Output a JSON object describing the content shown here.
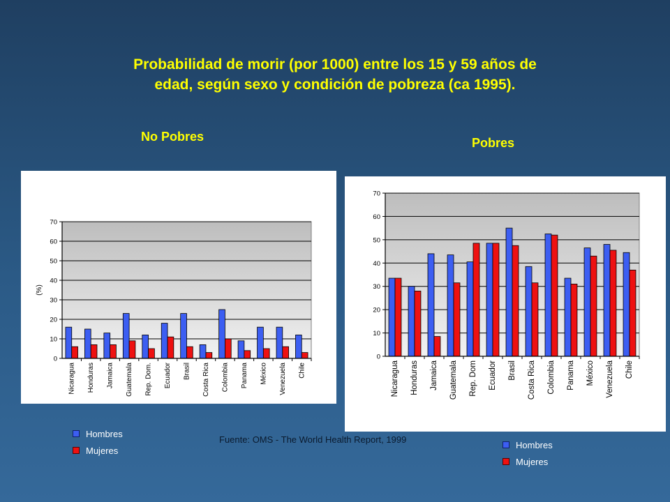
{
  "slide": {
    "title_line1": "Probabilidad de morir  (por 1000) entre los 15 y 59 años de",
    "title_line2": "edad, según sexo y condición de pobreza (ca 1995).",
    "source": "Fuente: OMS - The World Health Report, 1999"
  },
  "colors": {
    "hombres": "#3c5ef2",
    "mujeres": "#ee1111",
    "plot_bg_top": "#bdbdbd",
    "plot_bg_bottom": "#f2f2f2"
  },
  "chart_data": [
    {
      "type": "bar",
      "title": "No Pobres",
      "ylabel": "(%)",
      "ylim": [
        0,
        70
      ],
      "yticks": [
        "0",
        "10",
        "20",
        "30",
        "40",
        "50",
        "60",
        "70"
      ],
      "categories": [
        "Nicaragua",
        "Honduras",
        "Jamaica",
        "Guatemala",
        "Rep. Dom.",
        "Ecuador",
        "Brasil",
        "Costa Rica",
        "Colombia",
        "Panama",
        "México",
        "Venezuela",
        "Chile"
      ],
      "series": [
        {
          "name": "Hombres",
          "values": [
            16,
            15,
            13,
            23,
            12,
            18,
            23,
            7,
            25,
            9,
            16,
            16,
            12
          ]
        },
        {
          "name": "Mujeres",
          "values": [
            6,
            7,
            7,
            9,
            5,
            11,
            6,
            3,
            10,
            4,
            5,
            6,
            3
          ]
        }
      ],
      "legend": {
        "position": "bottom-left",
        "items": [
          "Hombres",
          "Mujeres"
        ]
      }
    },
    {
      "type": "bar",
      "title": "Pobres",
      "ylabel": "",
      "ylim": [
        0,
        70
      ],
      "yticks": [
        "0",
        "10",
        "20",
        "30",
        "40",
        "50",
        "60",
        "70"
      ],
      "categories": [
        "Nicaragua",
        "Honduras",
        "Jamaica",
        "Guatemala",
        "Rep. Dom",
        "Ecuador",
        "Brasil",
        "Costa Rica",
        "Colombia",
        "Panama",
        "México",
        "Venezuela",
        "Chile"
      ],
      "series": [
        {
          "name": "Hombres",
          "values": [
            33.5,
            30,
            44,
            43.5,
            40.5,
            48.5,
            55,
            38.5,
            52.5,
            33.5,
            46.5,
            48,
            44.5
          ]
        },
        {
          "name": "Mujeres",
          "values": [
            33.5,
            28,
            8.5,
            31.5,
            48.5,
            48.5,
            47.5,
            31.5,
            52,
            31,
            43,
            45.5,
            37
          ]
        }
      ],
      "legend": {
        "position": "bottom-right",
        "items": [
          "Hombres",
          "Mujeres"
        ]
      }
    }
  ]
}
